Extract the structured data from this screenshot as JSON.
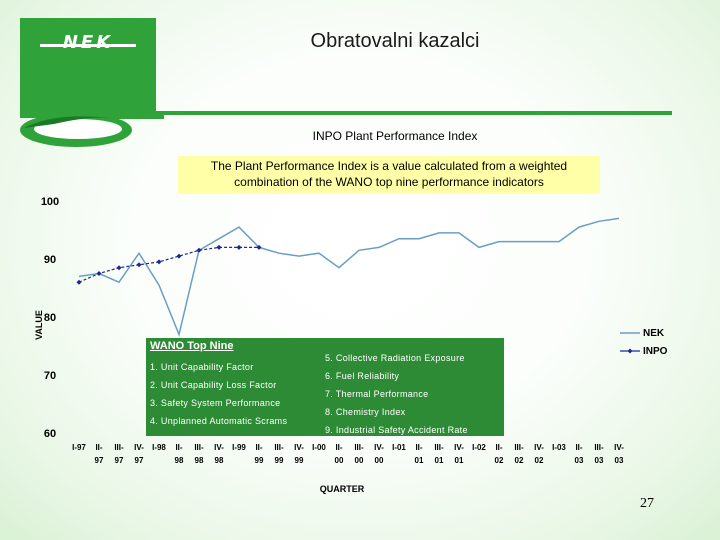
{
  "header": {
    "logo_text": "NEK",
    "title": "Obratovalni kazalci"
  },
  "chart_data": {
    "type": "line",
    "title": "INPO Plant Performance Index",
    "note": "The Plant Performance Index is a value calculated from a weighted combination of the WANO top nine performance indicators",
    "xlabel": "QUARTER",
    "ylabel": "VALUE",
    "ylim": [
      60,
      100
    ],
    "yticks": [
      60,
      70,
      80,
      90,
      100
    ],
    "grid": false,
    "legend_placement": "right",
    "categories": [
      [
        "I-97",
        ""
      ],
      [
        "II-",
        "97"
      ],
      [
        "III-",
        "97"
      ],
      [
        "IV-",
        "97"
      ],
      [
        "I-98",
        ""
      ],
      [
        "II-",
        "98"
      ],
      [
        "III-",
        "98"
      ],
      [
        "IV-",
        "98"
      ],
      [
        "I-99",
        ""
      ],
      [
        "II-",
        "99"
      ],
      [
        "III-",
        "99"
      ],
      [
        "IV-",
        "99"
      ],
      [
        "I-00",
        ""
      ],
      [
        "II-",
        "00"
      ],
      [
        "III-",
        "00"
      ],
      [
        "IV-",
        "00"
      ],
      [
        "I-01",
        ""
      ],
      [
        "II-",
        "01"
      ],
      [
        "III-",
        "01"
      ],
      [
        "IV-",
        "01"
      ],
      [
        "I-02",
        ""
      ],
      [
        "II-",
        "02"
      ],
      [
        "III-",
        "02"
      ],
      [
        "IV-",
        "02"
      ],
      [
        "I-03",
        ""
      ],
      [
        "II-",
        "03"
      ],
      [
        "III-",
        "03"
      ],
      [
        "IV-",
        "03"
      ]
    ],
    "series": [
      {
        "name": "NEK",
        "color": "#6a9ec4",
        "marker": "none",
        "values": [
          87,
          87.5,
          86,
          91,
          85.5,
          77,
          91.5,
          93.5,
          95.5,
          92,
          91,
          90.5,
          91,
          88.5,
          91.5,
          92,
          93.5,
          93.5,
          94.5,
          94.5,
          92,
          93,
          93,
          93,
          93,
          95.5,
          96.5,
          97
        ]
      },
      {
        "name": "INPO",
        "color": "#1c2a8c",
        "marker": "diamond",
        "values": [
          86,
          87.5,
          88.5,
          89,
          89.5,
          90.5,
          91.5,
          92,
          92,
          92,
          null,
          null,
          null,
          null,
          null,
          null,
          null,
          null,
          null,
          null,
          null,
          null,
          null,
          null,
          null,
          null,
          null,
          null
        ]
      }
    ]
  },
  "legend_box": {
    "title": "WANO Top Nine",
    "left_items": [
      "1. Unit Capability Factor",
      "2. Unit Capability Loss Factor",
      "3. Safety System Performance",
      "4. Unplanned Automatic Scrams"
    ],
    "right_items": [
      "5. Collective Radiation Exposure",
      "6. Fuel Reliability",
      "7. Thermal Performance",
      "8. Chemistry Index",
      "9. Industrial Safety Accident Rate"
    ]
  },
  "footer": {
    "page_number": "27"
  }
}
